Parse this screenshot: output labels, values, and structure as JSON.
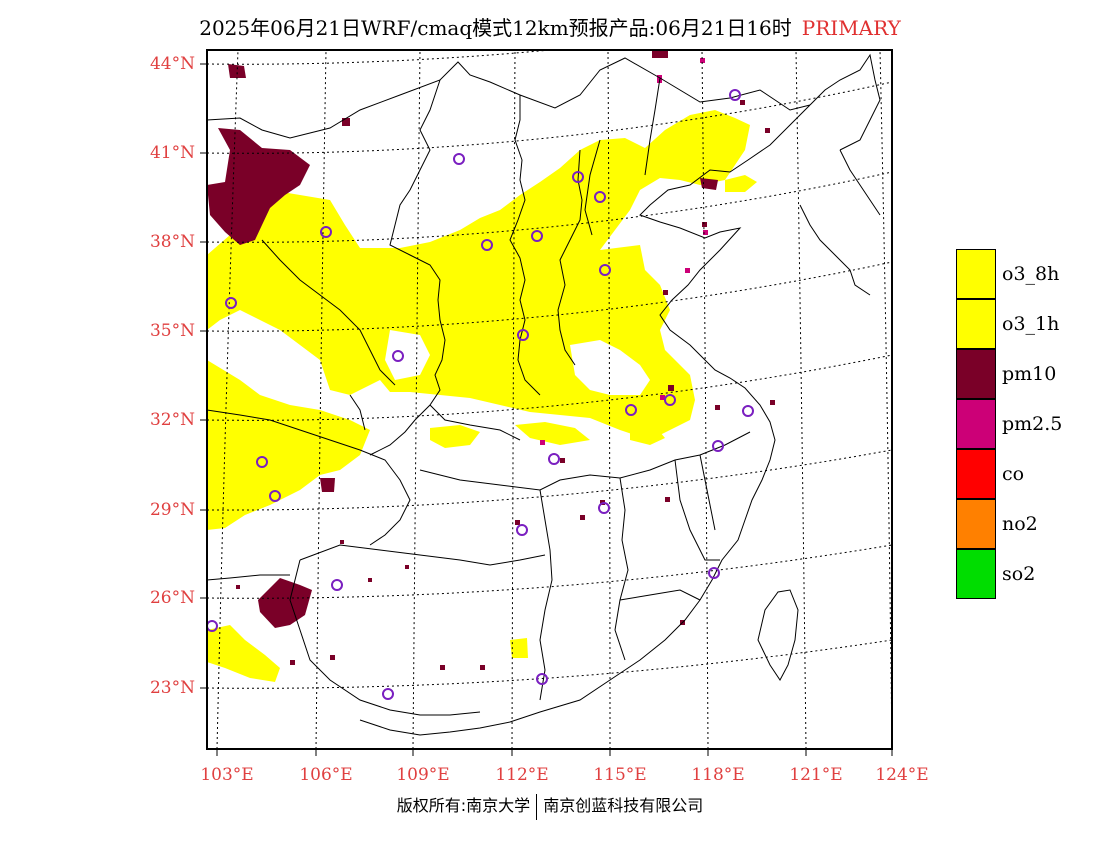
{
  "header": {
    "title": "2025年06月21日WRF/cmaq模式12km预报产品:06月21日16时",
    "tag": "PRIMARY",
    "tag_color": "#e03030"
  },
  "axes": {
    "lat_labels": [
      "44°N",
      "41°N",
      "38°N",
      "35°N",
      "32°N",
      "29°N",
      "26°N",
      "23°N"
    ],
    "lon_labels": [
      "103°E",
      "106°E",
      "109°E",
      "112°E",
      "115°E",
      "118°E",
      "121°E",
      "124°E"
    ],
    "label_color": "#e04040"
  },
  "legend": {
    "items": [
      {
        "label": "o3_8h",
        "color": "#ffff00"
      },
      {
        "label": "o3_1h",
        "color": "#ffff00"
      },
      {
        "label": "pm10",
        "color": "#7a0028"
      },
      {
        "label": "pm2.5",
        "color": "#cc0077"
      },
      {
        "label": "co",
        "color": "#ff0000"
      },
      {
        "label": "no2",
        "color": "#ff8000"
      },
      {
        "label": "so2",
        "color": "#00dd00"
      }
    ]
  },
  "map": {
    "region": "East/Central China",
    "frame_color": "#000000",
    "marker_color": "#7a1fc0",
    "pollutant_colors": {
      "o3": "#ffff00",
      "pm10": "#7a0028",
      "pm2.5": "#cc0077"
    }
  },
  "footer": {
    "copyright_left": "版权所有:南京大学",
    "copyright_right": "南京创蓝科技有限公司"
  }
}
